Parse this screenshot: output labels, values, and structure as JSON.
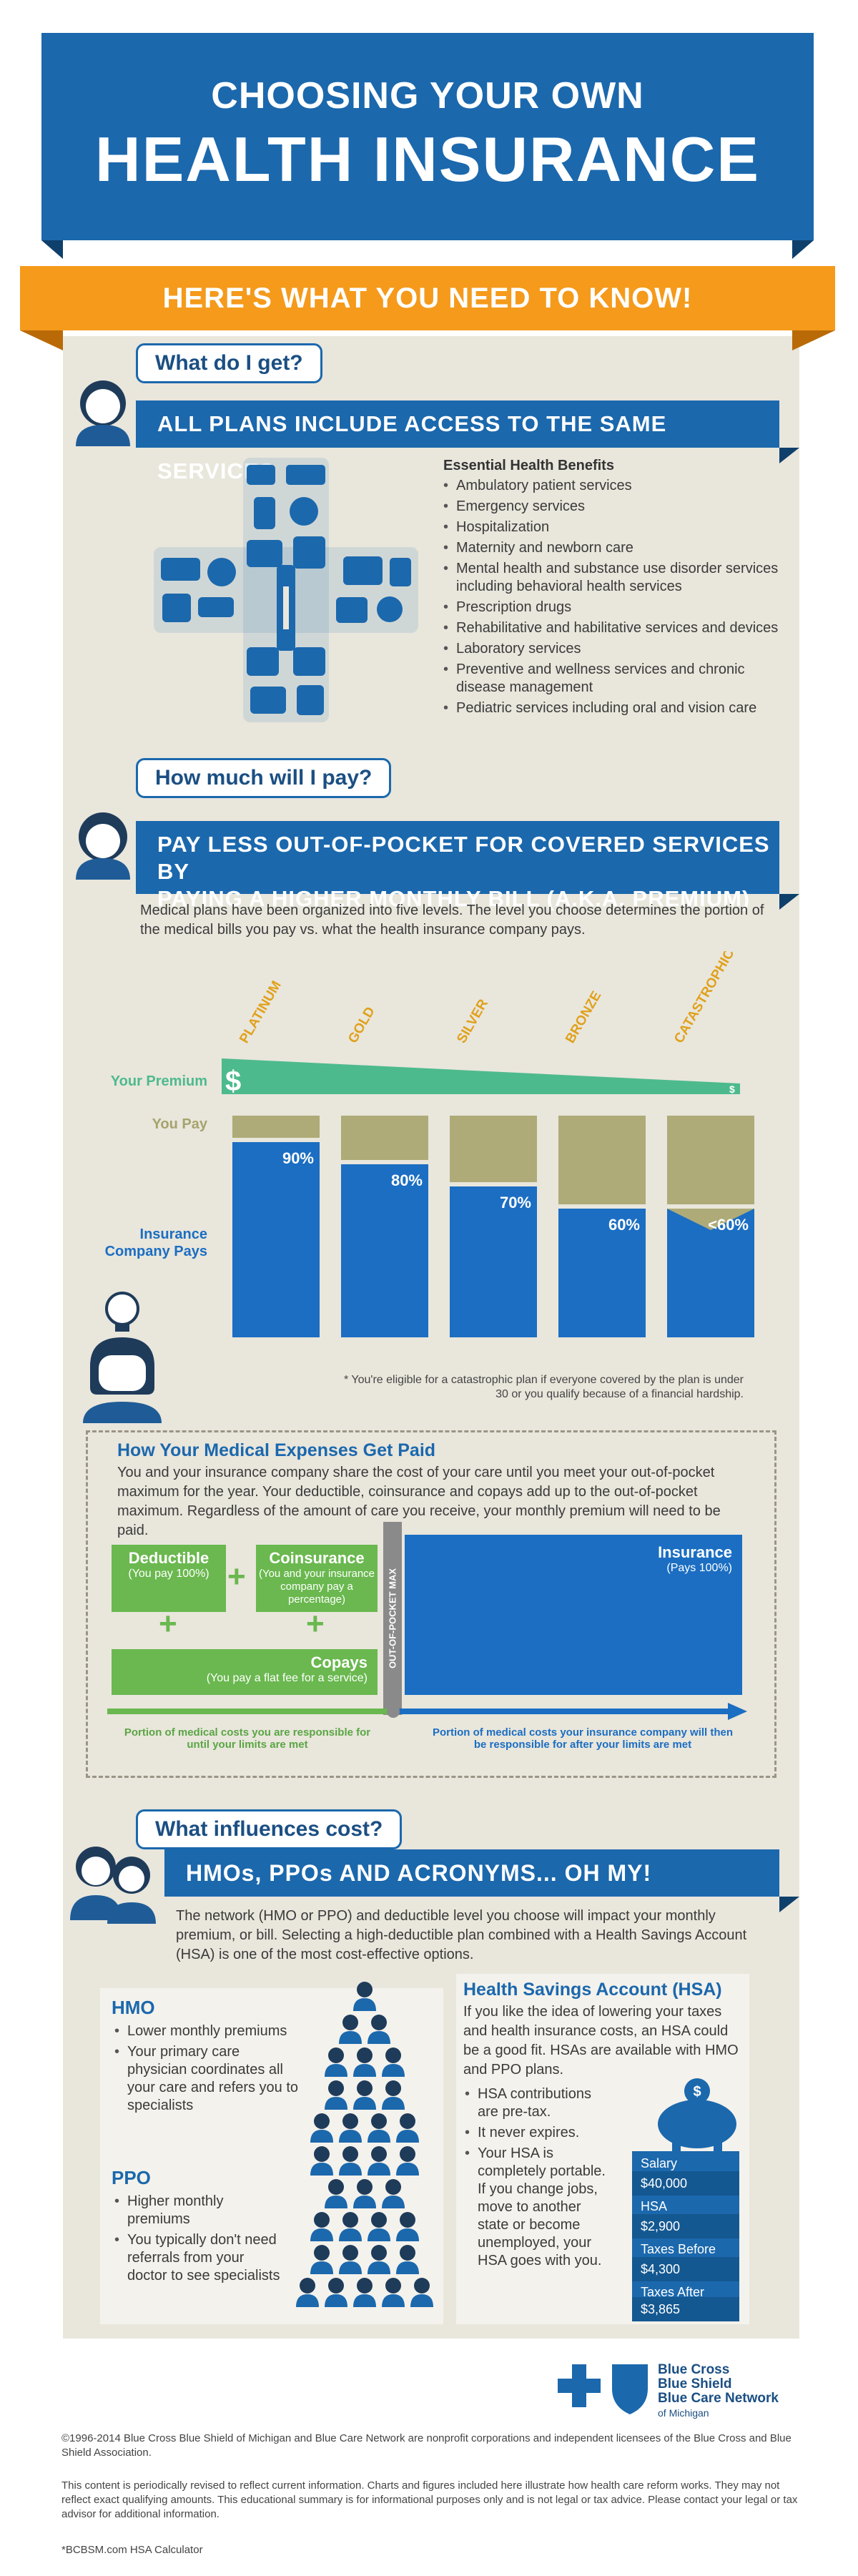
{
  "hero": {
    "line1": "CHOOSING YOUR OWN",
    "line2": "HEALTH INSURANCE"
  },
  "ribbon": "HERE'S WHAT YOU NEED TO KNOW!",
  "section1": {
    "question": "What do I get?",
    "banner": "ALL PLANS INCLUDE ACCESS TO THE SAME SERVICES",
    "benefits_title": "Essential Health Benefits",
    "benefits": [
      "Ambulatory patient services",
      "Emergency services",
      "Hospitalization",
      "Maternity and newborn care",
      "Mental health and substance use disorder services including behavioral health services",
      "Prescription drugs",
      "Rehabilitative and habilitative services and devices",
      "Laboratory services",
      "Preventive and wellness services and chronic disease management",
      "Pediatric services including oral and vision care"
    ]
  },
  "section2": {
    "question": "How much will I pay?",
    "banner_line1": "PAY LESS OUT-OF-POCKET FOR COVERED SERVICES BY",
    "banner_line2": "PAYING A HIGHER MONTHLY BILL (A.K.A. PREMIUM)",
    "intro": "Medical plans have been organized into five levels. The level you choose determines the portion of the medical bills you pay vs. what the health insurance company pays.",
    "label_premium": "Your Premium",
    "label_you_pay": "You Pay",
    "label_insurance": "Insurance Company Pays",
    "premium_high_symbol": "$",
    "premium_low_symbol": "$",
    "footnote": "* You're eligible for a catastrophic plan if everyone covered by the plan is under 30 or you qualify because of a financial hardship."
  },
  "chart_data": {
    "type": "bar",
    "categories": [
      "PLATINUM",
      "GOLD",
      "SILVER",
      "BRONZE",
      "CATASTROPHIC*"
    ],
    "series": [
      {
        "name": "Insurance Company Pays",
        "values": [
          90,
          80,
          70,
          60,
          60
        ]
      },
      {
        "name": "You Pay",
        "values": [
          10,
          20,
          30,
          40,
          40
        ]
      }
    ],
    "value_labels": [
      "90%",
      "80%",
      "70%",
      "60%",
      "<60%"
    ],
    "ylim": [
      0,
      100
    ],
    "colors": {
      "insurance": "#1b6ec2",
      "you_pay": "#aeab78",
      "premium": "#4dba8d"
    }
  },
  "expenses": {
    "title": "How Your Medical Expenses Get Paid",
    "text": "You and your insurance company share the cost of your care until you meet your out-of-pocket maximum for the year. Your deductible, coinsurance and copays add up to the out-of-pocket maximum. Regardless of the amount of care you receive, your monthly premium will need to be paid.",
    "deductible_title": "Deductible",
    "deductible_sub": "(You pay 100%)",
    "coinsurance_title": "Coinsurance",
    "coinsurance_sub": "(You and your insurance company pay a percentage)",
    "copays_title": "Copays",
    "copays_sub": "(You pay a flat fee for a service)",
    "oop_max": "OUT-OF-POCKET MAX",
    "insurance_title": "Insurance",
    "insurance_sub": "(Pays 100%)",
    "left_caption": "Portion of medical costs you are responsible for until your limits are met",
    "right_caption": "Portion of medical costs your insurance company will then be responsible for after your limits are met"
  },
  "section3": {
    "question": "What influences cost?",
    "banner": "HMOs, PPOs AND ACRONYMS... OH MY!",
    "intro": "The network (HMO or PPO) and deductible level you choose will impact your monthly premium, or bill. Selecting a high-deductible plan combined with a Health Savings Account (HSA) is one of the most cost-effective options.",
    "hmo_title": "HMO",
    "hmo_items": [
      "Lower monthly premiums",
      "Your primary care physician coordinates all your care and refers you to specialists"
    ],
    "ppo_title": "PPO",
    "ppo_items": [
      "Higher monthly premiums",
      "You typically don't need referrals from your doctor to see specialists"
    ],
    "hsa_title": "Health Savings Account (HSA)",
    "hsa_intro": "If you like the idea of lowering your taxes and health insurance costs, an HSA could be a good fit. HSAs are available with HMO and PPO plans.",
    "hsa_items": [
      "HSA contributions are pre-tax.",
      "It never expires.",
      "Your HSA is completely portable. If you change jobs, move to another state or become unemployed, your HSA goes with you."
    ],
    "money": [
      {
        "label": "Salary",
        "value": "$40,000"
      },
      {
        "label": "HSA Contribution",
        "value": "$2,900"
      },
      {
        "label": "Taxes Before HSA",
        "value": "$4,300"
      },
      {
        "label": "Taxes After HSA*",
        "value": "$3,865"
      }
    ]
  },
  "logo": {
    "line1": "Blue Cross",
    "line2": "Blue Shield",
    "line3": "Blue Care Network",
    "line4": "of Michigan"
  },
  "footer": {
    "p1": "©1996-2014 Blue Cross Blue Shield of Michigan and Blue Care Network are nonprofit corporations and independent licensees of the Blue Cross and Blue Shield Association.",
    "p2": "This content is periodically revised to reflect current information. Charts and figures included here illustrate how health care reform works. They may not reflect exact qualifying amounts. This educational summary is for informational purposes only and is not legal or tax advice. Please contact your legal or tax advisor for additional information.",
    "p3": "*BCBSM.com HSA Calculator"
  }
}
